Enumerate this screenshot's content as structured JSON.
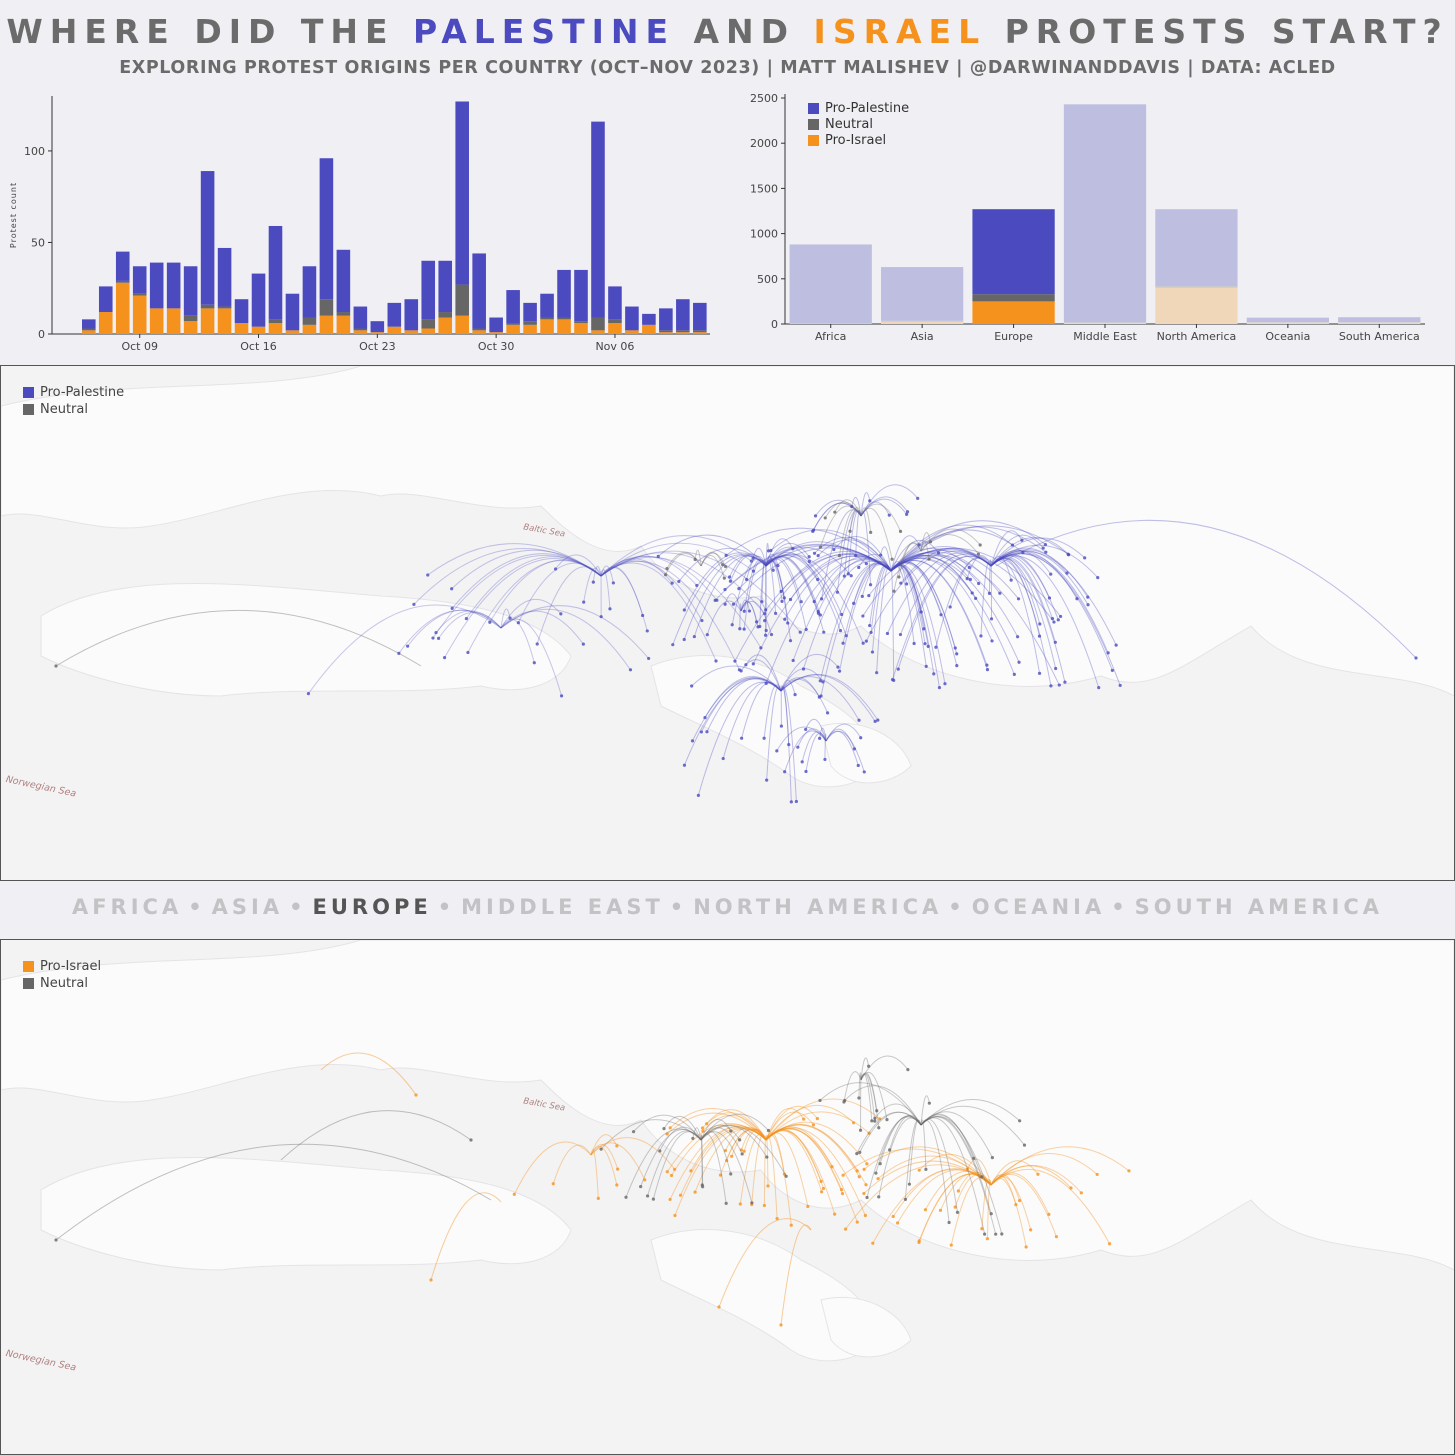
{
  "title": {
    "part1": "WHERE DID THE ",
    "palestine": "PALESTINE",
    "part2": " AND ",
    "israel": "ISRAEL",
    "part3": " PROTESTS START?"
  },
  "subtitle": "EXPLORING PROTEST ORIGINS PER COUNTRY (OCT–NOV 2023) | MATT MALISHEV | @DARWINANDDAVIS | DATA: ACLED",
  "colors": {
    "pro_palestine": "#4b4bbf",
    "neutral": "#666666",
    "pro_israel": "#f5921e",
    "pro_palestine_faded": "#bebfe0",
    "pro_israel_faded": "#f1d7b9"
  },
  "chart_data": [
    {
      "type": "bar",
      "stacked": true,
      "ylabel": "Protest count",
      "xlabel": "",
      "ylim": [
        0,
        130
      ],
      "yticks": [
        0,
        50,
        100
      ],
      "xtick_labels": [
        "Oct 09",
        "Oct 16",
        "Oct 23",
        "Oct 30",
        "Nov 06"
      ],
      "xtick_index": [
        3,
        10,
        17,
        24,
        31
      ],
      "categories": [
        "Oct 06",
        "Oct 07",
        "Oct 08",
        "Oct 09",
        "Oct 10",
        "Oct 11",
        "Oct 12",
        "Oct 13",
        "Oct 14",
        "Oct 15",
        "Oct 16",
        "Oct 17",
        "Oct 18",
        "Oct 19",
        "Oct 20",
        "Oct 21",
        "Oct 22",
        "Oct 23",
        "Oct 24",
        "Oct 25",
        "Oct 26",
        "Oct 27",
        "Oct 28",
        "Oct 29",
        "Oct 30",
        "Oct 31",
        "Nov 01",
        "Nov 02",
        "Nov 03",
        "Nov 04",
        "Nov 05",
        "Nov 06",
        "Nov 07",
        "Nov 08",
        "Nov 09",
        "Nov 10",
        "Nov 11"
      ],
      "series": [
        {
          "name": "Pro-Israel",
          "color_key": "pro_israel",
          "values": [
            2,
            12,
            28,
            21,
            14,
            14,
            7,
            14,
            14,
            6,
            4,
            6,
            2,
            5,
            10,
            10,
            2,
            1,
            4,
            2,
            3,
            9,
            10,
            2,
            1,
            5,
            5,
            8,
            8,
            6,
            2,
            6,
            2,
            5,
            1,
            1,
            1
          ]
        },
        {
          "name": "Neutral",
          "color_key": "neutral",
          "values": [
            1,
            0,
            1,
            1,
            0,
            0,
            3,
            2,
            1,
            0,
            0,
            2,
            0,
            4,
            9,
            2,
            1,
            0,
            0,
            0,
            5,
            3,
            17,
            1,
            0,
            1,
            2,
            1,
            1,
            1,
            7,
            2,
            0,
            0,
            1,
            1,
            1
          ]
        },
        {
          "name": "Pro-Palestine",
          "color_key": "pro_palestine",
          "values": [
            5,
            14,
            16,
            15,
            25,
            25,
            27,
            73,
            32,
            13,
            29,
            51,
            20,
            28,
            77,
            34,
            12,
            6,
            13,
            17,
            32,
            28,
            100,
            41,
            8,
            18,
            10,
            13,
            26,
            28,
            107,
            18,
            13,
            6,
            12,
            17,
            15
          ]
        }
      ]
    },
    {
      "type": "bar",
      "stacked": true,
      "xlabel": "",
      "ylabel": "",
      "ylim": [
        0,
        2500
      ],
      "yticks": [
        0,
        500,
        1000,
        1500,
        2000,
        2500
      ],
      "legend_position": "top-left",
      "highlighted_category": "Europe",
      "categories": [
        "Africa",
        "Asia",
        "Europe",
        "Middle East",
        "North America",
        "Oceania",
        "South America"
      ],
      "series": [
        {
          "name": "Pro-Israel",
          "color_key": "pro_israel",
          "values": [
            5,
            25,
            250,
            10,
            400,
            15,
            15
          ]
        },
        {
          "name": "Neutral",
          "color_key": "neutral",
          "values": [
            5,
            10,
            80,
            10,
            20,
            5,
            5
          ]
        },
        {
          "name": "Pro-Palestine",
          "color_key": "pro_palestine",
          "values": [
            870,
            595,
            940,
            2410,
            850,
            50,
            55
          ]
        }
      ]
    }
  ],
  "map_top": {
    "legend": [
      "Pro-Palestine",
      "Neutral"
    ],
    "sea_label": "Norwegian Sea",
    "baltic_label": "Baltic Sea"
  },
  "map_bottom": {
    "legend": [
      "Pro-Israel",
      "Neutral"
    ],
    "sea_label": "Norwegian Sea",
    "baltic_label": "Baltic Sea"
  },
  "region_nav": [
    "AFRICA",
    "ASIA",
    "EUROPE",
    "MIDDLE EAST",
    "NORTH AMERICA",
    "OCEANIA",
    "SOUTH AMERICA"
  ],
  "region_nav_active": "EUROPE"
}
